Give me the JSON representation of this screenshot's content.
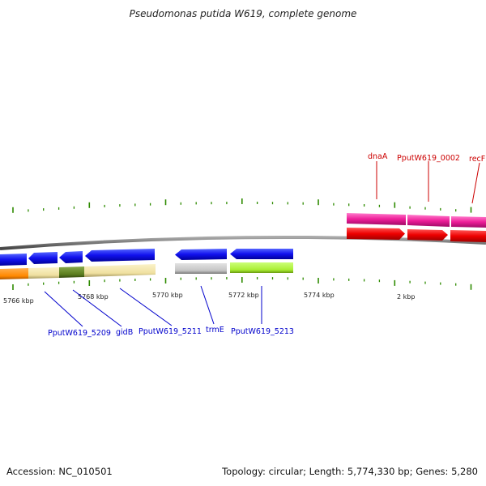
{
  "title": "Pseudomonas putida W619, complete genome",
  "footer": {
    "accession": "Accession: NC_010501",
    "summary": "Topology: circular; Length: 5,774,330 bp; Genes: 5,280"
  },
  "scale_labels": [
    "5766 kbp",
    "5768 kbp",
    "5770 kbp",
    "5772 kbp",
    "5774 kbp",
    "2 kbp"
  ],
  "gene_labels_top": [
    "dnaA",
    "PputW619_0002",
    "recF"
  ],
  "gene_labels_bottom": [
    "PputW619_5209",
    "gidB",
    "PputW619_5211",
    "trmE",
    "PputW619_5213"
  ],
  "colors": {
    "top_label": "#cc0000",
    "bottom_label": "#0000cc",
    "tick": "#2e8b00",
    "backbone": "#777777",
    "forward_gene": "#ee0000",
    "forward_product": "#ee1e99",
    "reverse_gene": "#1111ee",
    "product_pale": "#efe0a0",
    "product_orange": "#ff8800",
    "product_olive": "#5b7d1e",
    "product_grey": "#c4c4c4",
    "product_green": "#aaee33"
  }
}
